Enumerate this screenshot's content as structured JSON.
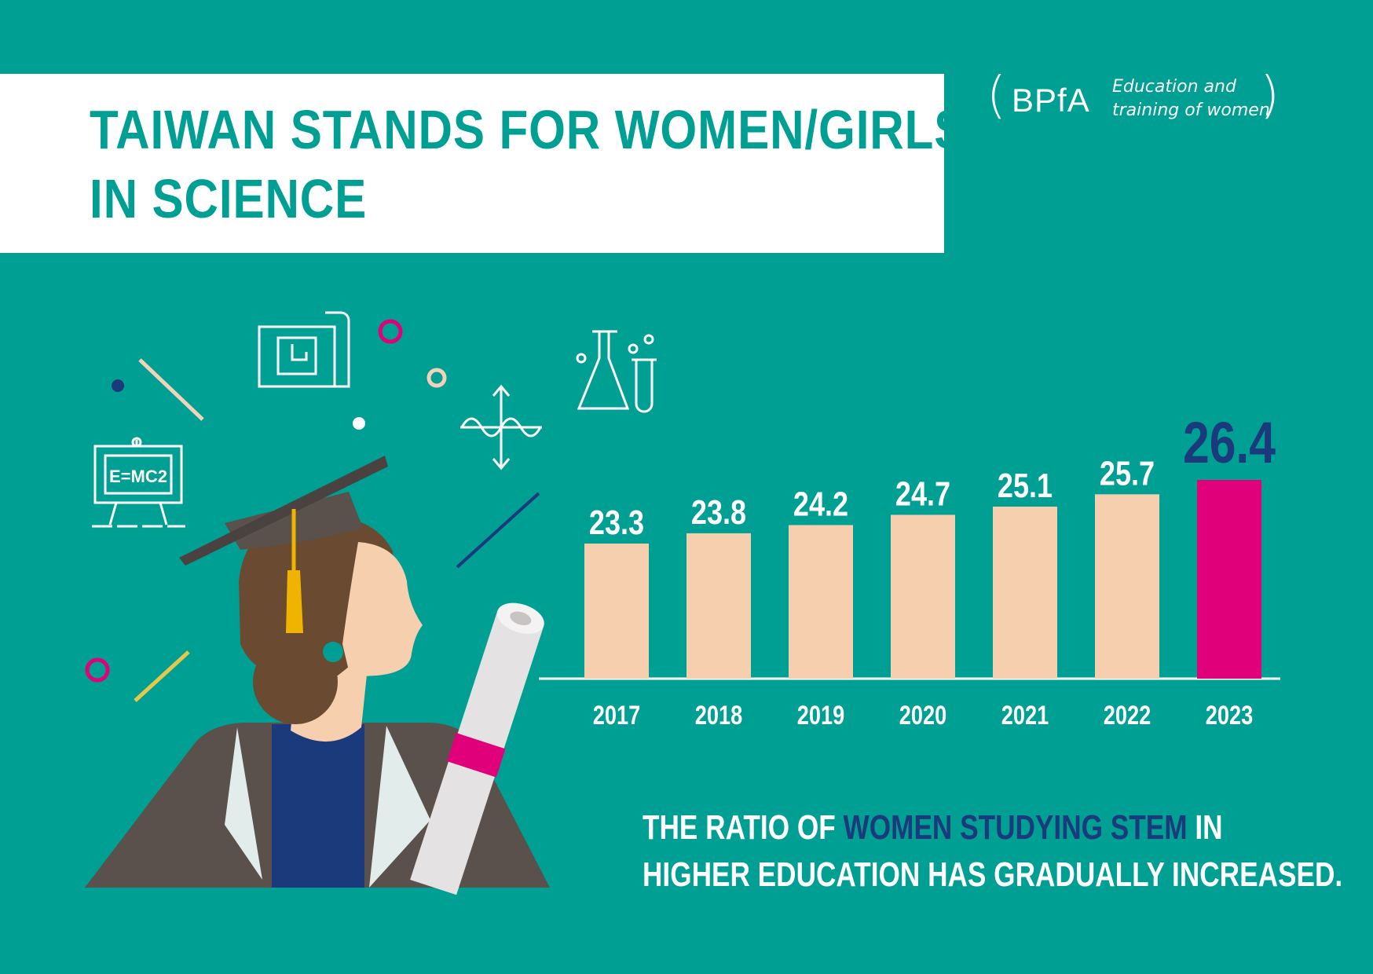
{
  "header": {
    "title_line1": "TAIWAN STANDS FOR WOMEN/GIRLS",
    "title_line2": "IN SCIENCE"
  },
  "badge": {
    "acronym": "BPfA",
    "line1": "Education and",
    "line2": "training of women"
  },
  "illustration": {
    "board_text": "E=MC2"
  },
  "caption": {
    "part1": "THE RATIO OF ",
    "highlight": "WOMEN STUDYING STEM",
    "part2": " IN",
    "line2": "HIGHER EDUCATION HAS GRADUALLY INCREASED."
  },
  "colors": {
    "background": "#009f93",
    "bar": "#f6cfae",
    "bar_highlight": "#e0007a",
    "highlight_text": "#1a3a7c"
  },
  "chart_data": {
    "type": "bar",
    "categories": [
      "2017",
      "2018",
      "2019",
      "2020",
      "2021",
      "2022",
      "2023"
    ],
    "values": [
      23.3,
      23.8,
      24.2,
      24.7,
      25.1,
      25.7,
      26.4
    ],
    "labels": [
      "23.3",
      "23.8",
      "24.2",
      "24.7",
      "25.1",
      "25.7",
      "26.4"
    ],
    "highlight_index": 6,
    "grid": false,
    "legend": "none"
  }
}
